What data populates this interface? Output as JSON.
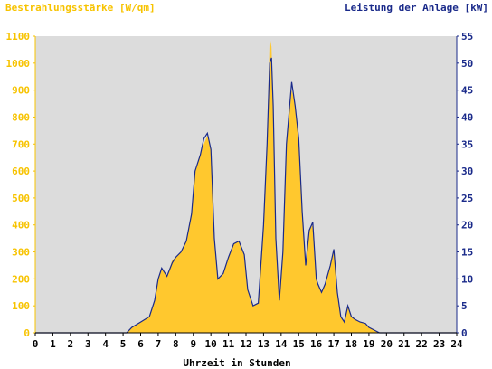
{
  "chart_data": {
    "type": "area",
    "left_axis_title": "Bestrahlungsstärke [W/qm]",
    "right_axis_title": "Leistung der Anlage [kW]",
    "xlabel": "Uhrzeit in Stunden",
    "x_ticks": [
      "0",
      "1",
      "2",
      "3",
      "4",
      "5",
      "6",
      "7",
      "8",
      "9",
      "10",
      "11",
      "12",
      "13",
      "14",
      "15",
      "16",
      "17",
      "18",
      "19",
      "20",
      "21",
      "22",
      "23",
      "24"
    ],
    "y_left_ticks": [
      "0",
      "100",
      "200",
      "300",
      "400",
      "500",
      "600",
      "700",
      "800",
      "900",
      "1000",
      "1100"
    ],
    "y_right_ticks": [
      "0",
      "5",
      "10",
      "15",
      "20",
      "25",
      "30",
      "35",
      "40",
      "45",
      "50",
      "55"
    ],
    "xlim": [
      0,
      24
    ],
    "ylim_left": [
      0,
      1100
    ],
    "ylim_right": [
      0,
      55
    ],
    "grid": false,
    "colors": {
      "background": "#dcdcdc",
      "irradiance": "#ffc82e",
      "power": "#1a2a8a",
      "left_axis_text": "#f7c300",
      "right_axis_text": "#1a2a8a"
    },
    "series": [
      {
        "name": "Bestrahlungsstärke [W/qm]",
        "axis": "left",
        "x": [
          0,
          5.2,
          5.5,
          6.0,
          6.5,
          6.8,
          7.0,
          7.2,
          7.5,
          7.8,
          8.0,
          8.3,
          8.6,
          8.9,
          9.1,
          9.4,
          9.6,
          9.8,
          10.0,
          10.2,
          10.4,
          10.7,
          11.0,
          11.3,
          11.6,
          11.9,
          12.1,
          12.4,
          12.7,
          13.0,
          13.2,
          13.35,
          13.45,
          13.55,
          13.7,
          13.9,
          14.1,
          14.3,
          14.6,
          14.8,
          15.0,
          15.2,
          15.4,
          15.6,
          15.8,
          16.0,
          16.1,
          16.3,
          16.5,
          16.8,
          17.0,
          17.2,
          17.4,
          17.6,
          17.8,
          18.0,
          18.2,
          18.5,
          18.8,
          19.0,
          19.3,
          19.6,
          19.8,
          24
        ],
        "y": [
          0,
          0,
          20,
          40,
          60,
          120,
          200,
          240,
          210,
          270,
          280,
          300,
          340,
          450,
          600,
          660,
          700,
          730,
          680,
          350,
          200,
          220,
          280,
          330,
          340,
          290,
          160,
          100,
          110,
          400,
          700,
          1100,
          1060,
          850,
          350,
          120,
          300,
          700,
          900,
          850,
          700,
          450,
          250,
          380,
          400,
          200,
          180,
          150,
          180,
          250,
          300,
          150,
          60,
          40,
          100,
          60,
          50,
          40,
          35,
          20,
          10,
          0,
          0,
          0
        ]
      },
      {
        "name": "Leistung der Anlage [kW]",
        "axis": "right",
        "x": [
          0,
          5.2,
          5.5,
          6.0,
          6.5,
          6.8,
          7.0,
          7.2,
          7.5,
          7.8,
          8.0,
          8.3,
          8.6,
          8.9,
          9.1,
          9.4,
          9.6,
          9.8,
          10.0,
          10.2,
          10.4,
          10.7,
          11.0,
          11.3,
          11.6,
          11.9,
          12.1,
          12.4,
          12.7,
          13.0,
          13.2,
          13.35,
          13.45,
          13.55,
          13.7,
          13.9,
          14.1,
          14.3,
          14.6,
          14.8,
          15.0,
          15.2,
          15.4,
          15.6,
          15.8,
          16.0,
          16.1,
          16.3,
          16.5,
          16.8,
          17.0,
          17.2,
          17.4,
          17.6,
          17.8,
          18.0,
          18.2,
          18.5,
          18.8,
          19.0,
          19.3,
          19.6,
          19.8,
          24
        ],
        "y": [
          0,
          0,
          1,
          2,
          3,
          6,
          10,
          12,
          10.5,
          13,
          14,
          15,
          17,
          22,
          30,
          33,
          36,
          37,
          34,
          17.5,
          10,
          11,
          14,
          16.5,
          17,
          14.5,
          8,
          5,
          5.5,
          20,
          35,
          50,
          51,
          42,
          17.5,
          6,
          15,
          35,
          46.5,
          42,
          36,
          22.5,
          12.5,
          19,
          20.5,
          10,
          9,
          7.5,
          9,
          12.5,
          15.5,
          7.5,
          3,
          2,
          5,
          3,
          2.5,
          2,
          1.75,
          1,
          0.5,
          0,
          0,
          0
        ]
      }
    ]
  }
}
